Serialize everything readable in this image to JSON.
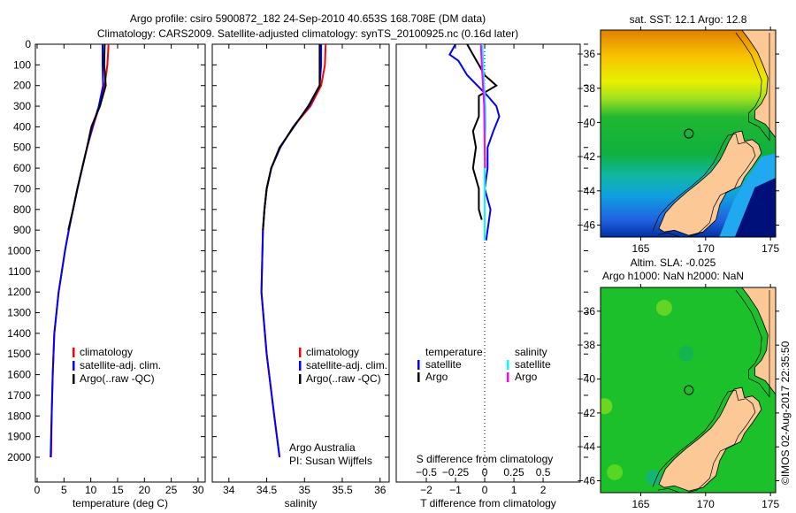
{
  "title_line1": "Argo profile: csiro 5900872_182 24-Sep-2010 40.653S 168.708E (DM data)",
  "title_line2": "Climatology: CARS2009. Satellite-adjusted climatology: synTS_20100925.nc (0.16d later)",
  "colors": {
    "climatology": "#ff0000",
    "satellite": "#0000ff",
    "argo": "#000000",
    "sal_satellite": "#00ffff",
    "sal_argo": "#ff00ff",
    "land": "#fcc896"
  },
  "chart_data": [
    {
      "type": "line",
      "id": "temperature",
      "xlabel": "temperature (deg C)",
      "ylabel": "",
      "xticks": [
        0,
        5,
        10,
        15,
        20,
        25,
        30
      ],
      "xlim": [
        -0.33,
        31.33
      ],
      "yticks": [
        0,
        100,
        200,
        300,
        400,
        500,
        600,
        700,
        800,
        900,
        1000,
        1100,
        1200,
        1300,
        1400,
        1500,
        1600,
        1700,
        1800,
        1900,
        2000
      ],
      "ylim": [
        0,
        2120
      ],
      "legend": [
        "climatology",
        "satellite-adj. clim.",
        "Argo(..raw -QC)"
      ],
      "series": [
        {
          "name": "climatology",
          "color": "#ff0000",
          "depth": [
            0,
            100,
            200,
            300,
            400,
            500,
            600,
            700,
            800,
            900,
            1000,
            1200,
            1400,
            1600,
            1800,
            2000
          ],
          "values": [
            13.3,
            13.1,
            12.6,
            11.6,
            10.4,
            9.3,
            8.4,
            7.5,
            6.7,
            5.9,
            5.2,
            4.0,
            3.2,
            2.9,
            2.7,
            2.6
          ]
        },
        {
          "name": "satellite-adj. clim.",
          "color": "#0000ff",
          "depth": [
            0,
            100,
            200,
            300,
            400,
            500,
            600,
            700,
            800,
            900,
            1000,
            1200,
            1400,
            1600,
            1800,
            2000
          ],
          "values": [
            12.2,
            12.2,
            12.3,
            11.5,
            10.3,
            9.3,
            8.4,
            7.5,
            6.7,
            5.9,
            5.2,
            4.0,
            3.2,
            2.9,
            2.7,
            2.5
          ]
        },
        {
          "name": "Argo(..raw -QC)",
          "color": "#000000",
          "depth": [
            0,
            100,
            200,
            300,
            400,
            500,
            600,
            700,
            800,
            900
          ],
          "values": [
            12.6,
            12.5,
            12.8,
            11.7,
            10.1,
            9.3,
            8.4,
            7.5,
            6.7,
            5.8
          ]
        }
      ]
    },
    {
      "type": "line",
      "id": "salinity",
      "xlabel": "salinity",
      "xticks": [
        34,
        34.5,
        35,
        35.5,
        36
      ],
      "xlim": [
        33.78,
        36.12
      ],
      "ylim": [
        0,
        2120
      ],
      "legend": [
        "climatology",
        "satellite-adj. clim.",
        "Argo(..raw -QC)"
      ],
      "annotation": [
        "Argo Australia",
        "PI: Susan Wijffels"
      ],
      "series": [
        {
          "name": "climatology",
          "color": "#ff0000",
          "depth": [
            0,
            100,
            200,
            300,
            400,
            500,
            600,
            700,
            800,
            900,
            1200,
            1500,
            1800,
            2000
          ],
          "values": [
            35.28,
            35.27,
            35.22,
            35.08,
            34.85,
            34.68,
            34.56,
            34.5,
            34.47,
            34.45,
            34.43,
            34.5,
            34.6,
            34.67
          ]
        },
        {
          "name": "satellite-adj. clim.",
          "color": "#0000ff",
          "depth": [
            0,
            100,
            200,
            300,
            400,
            500,
            600,
            700,
            800,
            900,
            1200,
            1500,
            1800,
            2000
          ],
          "values": [
            35.22,
            35.22,
            35.2,
            35.06,
            34.85,
            34.68,
            34.56,
            34.5,
            34.47,
            34.45,
            34.43,
            34.5,
            34.6,
            34.67
          ]
        },
        {
          "name": "Argo(..raw -QC)",
          "color": "#000000",
          "depth": [
            0,
            100,
            200,
            300,
            400,
            500,
            600,
            700,
            800,
            900
          ],
          "values": [
            35.2,
            35.2,
            35.2,
            35.05,
            34.86,
            34.67,
            34.56,
            34.5,
            34.47,
            34.45
          ]
        }
      ]
    },
    {
      "type": "line",
      "id": "differences",
      "xlabel": "T difference from climatology",
      "xlabel_top": "S difference from climatology",
      "xticks": [
        -2,
        -1,
        0,
        1,
        2
      ],
      "xticks_top": [
        -0.5,
        -0.25,
        0,
        0.25,
        0.5
      ],
      "xticks_top_labels": [
        "−0.5",
        "−0.25",
        "0",
        "0.25",
        "0.5"
      ],
      "xticks_labels": [
        "−2",
        "−1",
        "0",
        "1",
        "2"
      ],
      "xlim": [
        -3.03,
        3.27
      ],
      "ylim": [
        0,
        2120
      ],
      "legend_temperature": {
        "title": "temperature",
        "items": [
          "satellite",
          "Argo"
        ]
      },
      "legend_salinity": {
        "title": "salinity",
        "items": [
          "satellite",
          "Argo"
        ]
      },
      "series": [
        {
          "name": "temperature satellite",
          "color": "#0000ff",
          "depth": [
            0,
            50,
            80,
            150,
            250,
            300,
            350,
            420,
            500,
            600,
            700,
            800,
            900,
            950
          ],
          "values": [
            -1.0,
            -1.2,
            -0.9,
            -0.6,
            0.1,
            0.4,
            0.5,
            0.3,
            0.1,
            0.1,
            0.0,
            0.2,
            0.1,
            0.05
          ]
        },
        {
          "name": "temperature Argo",
          "color": "#000000",
          "depth": [
            0,
            50,
            100,
            150,
            200,
            250,
            300,
            350,
            420,
            500,
            600,
            700,
            800,
            850
          ],
          "values": [
            -0.6,
            -0.4,
            -0.2,
            0.0,
            0.4,
            -0.2,
            -0.2,
            -0.2,
            -0.4,
            -0.3,
            -0.4,
            -0.2,
            -0.2,
            -0.1
          ]
        },
        {
          "name": "salinity satellite",
          "color": "#00ffff",
          "depth": [
            0,
            100,
            200,
            300,
            400,
            500,
            600,
            700,
            800,
            950
          ],
          "values": [
            -0.08,
            -0.05,
            -0.02,
            0.02,
            0.03,
            0.0,
            0.0,
            0.0,
            0.0,
            0.0
          ]
        },
        {
          "name": "salinity Argo",
          "color": "#ff00ff",
          "depth": [
            0,
            100,
            200,
            300,
            400,
            500,
            600
          ],
          "values": [
            -0.13,
            -0.1,
            -0.06,
            -0.02,
            -0.01,
            0.0,
            0.01
          ]
        }
      ]
    },
    {
      "type": "heatmap",
      "id": "sst-map",
      "title": "sat. SST: 12.1 Argo: 12.8",
      "xticks": [
        165,
        170,
        175
      ],
      "yticks": [
        -36,
        -38,
        -40,
        -42,
        -44,
        -46
      ],
      "yticks_labels": [
        "−36",
        "−38",
        "−40",
        "−42",
        "−44",
        "−46"
      ],
      "xlim": [
        161.9,
        175.4
      ],
      "ylim": [
        -46.7,
        -34.6
      ],
      "argo_position": [
        168.708,
        -40.653
      ]
    },
    {
      "type": "heatmap",
      "id": "sla-map",
      "title_line1": "Altim. SLA: -0.025",
      "title_line2": "Argo h1000: NaN h2000: NaN",
      "xticks": [
        165,
        170,
        175
      ],
      "yticks": [
        -36,
        -38,
        -40,
        -42,
        -44,
        -46
      ],
      "yticks_labels": [
        "−36",
        "−38",
        "−40",
        "−42",
        "−44",
        "−46"
      ],
      "xlim": [
        161.9,
        175.4
      ],
      "ylim": [
        -46.7,
        -34.6
      ],
      "argo_position": [
        168.708,
        -40.653
      ]
    }
  ],
  "coastline": {
    "south_island": [
      [
        166.4,
        -46.2
      ],
      [
        166.9,
        -45.3
      ],
      [
        167.6,
        -44.7
      ],
      [
        168.5,
        -44.1
      ],
      [
        169.5,
        -43.5
      ],
      [
        170.4,
        -42.9
      ],
      [
        171.1,
        -42.2
      ],
      [
        171.5,
        -41.6
      ],
      [
        171.8,
        -41.1
      ],
      [
        172.2,
        -40.6
      ],
      [
        172.8,
        -40.5
      ],
      [
        173.0,
        -41.1
      ],
      [
        173.6,
        -41.0
      ],
      [
        174.1,
        -41.3
      ],
      [
        174.3,
        -41.8
      ],
      [
        173.6,
        -42.6
      ],
      [
        173.0,
        -43.2
      ],
      [
        172.7,
        -43.7
      ],
      [
        171.6,
        -44.1
      ],
      [
        171.1,
        -44.8
      ],
      [
        170.8,
        -45.7
      ],
      [
        169.8,
        -46.4
      ],
      [
        168.7,
        -46.6
      ],
      [
        167.6,
        -46.3
      ],
      [
        166.8,
        -46.4
      ]
    ],
    "north_island": [
      [
        172.8,
        -34.6
      ],
      [
        173.3,
        -35.1
      ],
      [
        174.0,
        -35.9
      ],
      [
        174.4,
        -36.6
      ],
      [
        174.8,
        -37.4
      ],
      [
        174.7,
        -38.3
      ],
      [
        174.3,
        -38.9
      ],
      [
        173.8,
        -39.3
      ],
      [
        173.8,
        -39.8
      ],
      [
        174.6,
        -40.1
      ],
      [
        175.1,
        -40.6
      ],
      [
        175.4,
        -40.9
      ],
      [
        175.4,
        -34.6
      ]
    ]
  },
  "footer_stamp": "©IMOS 02-Aug-2017 22:35:50"
}
